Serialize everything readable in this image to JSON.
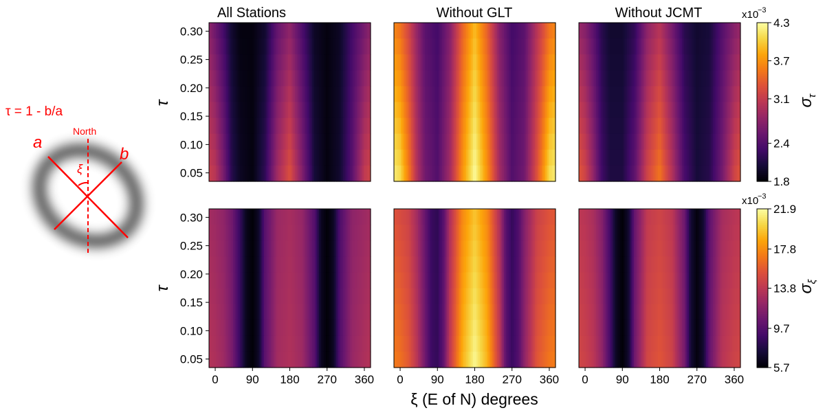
{
  "diagram": {
    "formula": "τ = 1 - b/a",
    "north_label": "North",
    "a_label": "a",
    "b_label": "b",
    "xi_label": "ξ",
    "color": "#ff0000"
  },
  "chart_data": {
    "type": "heatmap",
    "xlabel": "ξ (E of N) degrees",
    "ylabel": "τ",
    "xlim": [
      -15,
      375
    ],
    "ylim": [
      0.035,
      0.315
    ],
    "x_ticks": [
      0,
      90,
      180,
      270,
      360
    ],
    "y_ticks": [
      0.05,
      0.1,
      0.15,
      0.2,
      0.25,
      0.3
    ],
    "y_tick_labels": [
      "0.05",
      "0.10",
      "0.15",
      "0.20",
      "0.25",
      "0.30"
    ],
    "columns": [
      "All Stations",
      "Without GLT",
      "Without JCMT"
    ],
    "colormap": "inferno",
    "rows": [
      {
        "name": "sigma_tau",
        "colorbar_label": "σ",
        "colorbar_sub": "τ",
        "scale_label": "x10",
        "scale_exp": "−3",
        "vmin": 1.8,
        "vmax": 4.3,
        "ticks": [
          1.8,
          2.4,
          3.1,
          3.7,
          4.3
        ],
        "tick_labels": [
          "1.8",
          "2.4",
          "3.1",
          "3.7",
          "4.3"
        ],
        "panels": [
          {
            "title": "All Stations",
            "profile_xi": [
              -15,
              0,
              20,
              40,
              60,
              90,
              120,
              150,
              180,
              210,
              240,
              270,
              300,
              330,
              360,
              375
            ],
            "profile_low": [
              3.15,
              3.05,
              2.65,
              2.15,
              1.95,
              1.85,
              2.2,
              2.9,
              3.3,
              2.7,
              2.05,
              1.85,
              2.0,
              2.45,
              3.1,
              3.2
            ],
            "profile_high": [
              2.75,
              2.55,
              2.3,
              2.0,
              1.85,
              1.85,
              2.0,
              2.5,
              2.75,
              2.35,
              1.95,
              1.85,
              1.95,
              2.3,
              2.6,
              2.75
            ]
          },
          {
            "title": "Without GLT",
            "profile_xi": [
              -15,
              0,
              20,
              40,
              60,
              90,
              120,
              150,
              180,
              210,
              240,
              270,
              300,
              330,
              360,
              375
            ],
            "profile_low": [
              4.2,
              4.1,
              3.6,
              3.0,
              2.6,
              2.4,
              2.9,
              3.7,
              4.3,
              3.7,
              2.9,
              2.4,
              2.6,
              3.3,
              4.1,
              4.2
            ],
            "profile_high": [
              3.6,
              3.5,
              3.2,
              2.8,
              2.45,
              2.3,
              2.7,
              3.4,
              3.9,
              3.4,
              2.7,
              2.3,
              2.45,
              3.0,
              3.5,
              3.6
            ]
          },
          {
            "title": "Without JCMT",
            "profile_xi": [
              -15,
              0,
              20,
              40,
              60,
              90,
              120,
              150,
              180,
              210,
              240,
              270,
              300,
              330,
              360,
              375
            ],
            "profile_low": [
              3.35,
              3.2,
              2.8,
              2.3,
              2.1,
              2.1,
              2.5,
              3.2,
              3.55,
              3.0,
              2.35,
              2.05,
              2.15,
              2.6,
              3.2,
              3.35
            ],
            "profile_high": [
              2.8,
              2.7,
              2.45,
              2.15,
              2.0,
              2.0,
              2.2,
              2.75,
              3.0,
              2.6,
              2.15,
              2.0,
              2.05,
              2.4,
              2.7,
              2.8
            ]
          }
        ]
      },
      {
        "name": "sigma_xi",
        "colorbar_label": "σ",
        "colorbar_sub": "ξ",
        "scale_label": "x10",
        "scale_exp": "−3",
        "vmin": 5.7,
        "vmax": 21.9,
        "ticks": [
          5.7,
          9.7,
          13.8,
          17.8,
          21.9
        ],
        "tick_labels": [
          "5.7",
          "9.7",
          "13.8",
          "17.8",
          "21.9"
        ],
        "panels": [
          {
            "title": "All Stations",
            "profile_xi": [
              -15,
              0,
              20,
              40,
              60,
              75,
              90,
              105,
              120,
              150,
              180,
              210,
              240,
              255,
              270,
              285,
              300,
              330,
              360,
              375
            ],
            "profile_low": [
              13.5,
              13.2,
              12.6,
              11.2,
              8.5,
              6.4,
              5.8,
              6.8,
              10.0,
              12.8,
              13.3,
              12.6,
              9.8,
              6.6,
              5.8,
              6.6,
              9.5,
              12.3,
              13.2,
              13.5
            ],
            "profile_high": [
              12.8,
              12.5,
              12.0,
              10.8,
              8.5,
              6.4,
              5.8,
              6.8,
              9.8,
              12.4,
              12.9,
              12.2,
              9.6,
              6.6,
              5.8,
              6.6,
              9.3,
              11.9,
              12.5,
              12.8
            ]
          },
          {
            "title": "Without GLT",
            "profile_xi": [
              -15,
              0,
              20,
              40,
              60,
              75,
              90,
              105,
              120,
              150,
              180,
              210,
              240,
              255,
              270,
              285,
              300,
              330,
              360,
              375
            ],
            "profile_low": [
              17.2,
              16.8,
              15.8,
              13.8,
              10.8,
              8.8,
              8.4,
              10.2,
              14.0,
              19.0,
              21.7,
              19.2,
              14.0,
              10.0,
              8.6,
              9.6,
              12.0,
              15.6,
              17.0,
              17.3
            ],
            "profile_high": [
              15.4,
              15.0,
              14.5,
              12.8,
              10.4,
              8.6,
              8.2,
              9.8,
              13.2,
              17.6,
              19.6,
              17.6,
              13.2,
              9.8,
              8.4,
              9.4,
              11.5,
              14.4,
              15.4,
              15.6
            ]
          },
          {
            "title": "Without JCMT",
            "profile_xi": [
              -15,
              0,
              20,
              40,
              60,
              75,
              90,
              105,
              120,
              150,
              180,
              210,
              240,
              255,
              270,
              285,
              300,
              330,
              360,
              375
            ],
            "profile_low": [
              14.8,
              14.5,
              13.8,
              12.2,
              9.2,
              6.6,
              5.8,
              7.0,
              10.8,
              14.8,
              15.6,
              14.6,
              11.0,
              7.2,
              6.0,
              7.0,
              10.3,
              13.6,
              14.6,
              14.8
            ],
            "profile_high": [
              13.8,
              13.6,
              13.0,
              11.6,
              9.0,
              6.6,
              5.8,
              7.0,
              10.4,
              14.0,
              14.6,
              13.8,
              10.6,
              7.2,
              6.0,
              7.0,
              10.0,
              12.8,
              13.6,
              13.8
            ]
          }
        ]
      }
    ]
  }
}
